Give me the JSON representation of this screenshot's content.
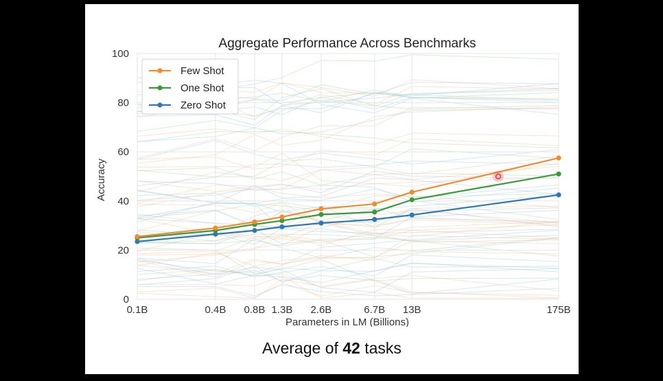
{
  "slide": {
    "caption_prefix": "Average of ",
    "caption_count": "42",
    "caption_suffix": " tasks"
  },
  "chart_data": {
    "type": "line",
    "title": "Aggregate Performance Across Benchmarks",
    "xlabel": "Parameters in LM (Billions)",
    "ylabel": "Accuracy",
    "categories": [
      "0.1B",
      "0.4B",
      "0.8B",
      "1.3B",
      "2.6B",
      "6.7B",
      "13B",
      "175B"
    ],
    "x": [
      0.1,
      0.4,
      0.8,
      1.3,
      2.6,
      6.7,
      13,
      175
    ],
    "ylim": [
      0,
      100
    ],
    "yticks": [
      0,
      20,
      40,
      60,
      80,
      100
    ],
    "grid": true,
    "legend_position": "top-left",
    "series": [
      {
        "name": "Few Shot",
        "color": "#f28a2e",
        "values": [
          25.5,
          29.0,
          31.5,
          33.5,
          36.8,
          38.8,
          43.6,
          57.5
        ]
      },
      {
        "name": "One Shot",
        "color": "#3a9a3a",
        "values": [
          25.0,
          28.0,
          30.5,
          32.0,
          34.5,
          35.5,
          40.5,
          51.0
        ]
      },
      {
        "name": "Zero Shot",
        "color": "#2f78b4",
        "values": [
          23.5,
          26.5,
          28.0,
          29.5,
          31.0,
          32.5,
          34.3,
          42.5
        ]
      }
    ],
    "annotation": {
      "label": "",
      "x": 60,
      "y": 50.0,
      "color": "#e83a3a"
    }
  }
}
